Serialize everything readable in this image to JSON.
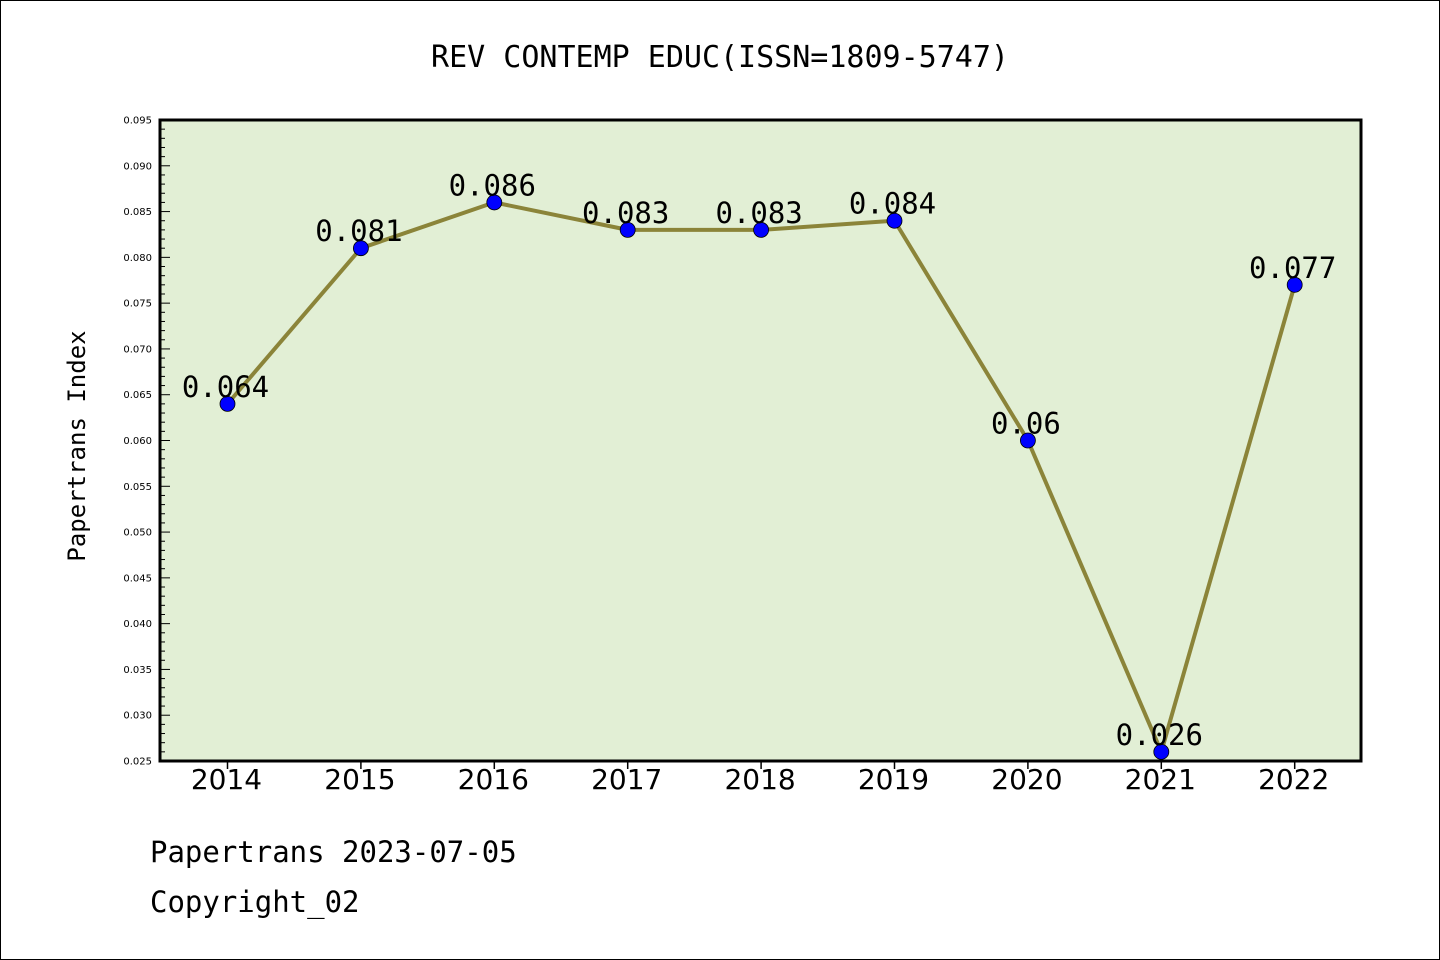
{
  "chart_data": {
    "type": "line",
    "title": "REV CONTEMP EDUC(ISSN=1809-5747)",
    "xlabel": "",
    "ylabel": "Papertrans Index",
    "categories": [
      "2014",
      "2015",
      "2016",
      "2017",
      "2018",
      "2019",
      "2020",
      "2021",
      "2022"
    ],
    "values": [
      0.064,
      0.081,
      0.086,
      0.083,
      0.083,
      0.084,
      0.06,
      0.026,
      0.077
    ],
    "data_labels": [
      "0.064",
      "0.081",
      "0.086",
      "0.083",
      "0.083",
      "0.084",
      "0.06",
      "0.026",
      "0.077"
    ],
    "ylim": [
      0.025,
      0.095
    ],
    "yticks": [
      "0.025",
      "0.030",
      "0.035",
      "0.040",
      "0.045",
      "0.050",
      "0.055",
      "0.060",
      "0.065",
      "0.070",
      "0.075",
      "0.080",
      "0.085",
      "0.090",
      "0.095"
    ],
    "grid": false,
    "legend": "none",
    "colors": {
      "plot_background": "#e2efd5",
      "line": "#8b8439",
      "marker": "#0000ff"
    }
  },
  "footer": {
    "line1": "Papertrans 2023-07-05",
    "line2": "Copyright_02"
  }
}
